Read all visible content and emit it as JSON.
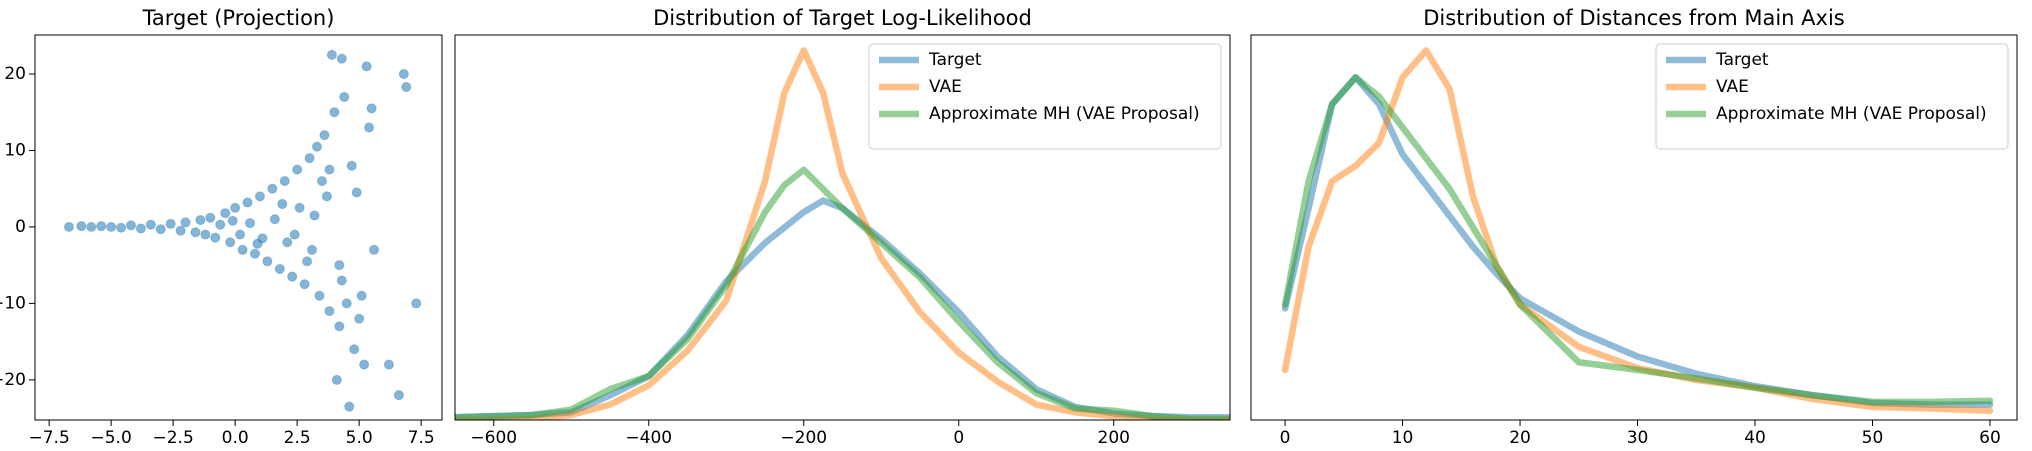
{
  "chart_data": [
    {
      "type": "scatter",
      "title": "Target (Projection)",
      "color": "#1f77b4",
      "x": [
        -6.7,
        -6.2,
        -5.8,
        -5.4,
        -5,
        -4.6,
        -4.2,
        -3.8,
        -3.4,
        -3,
        -2.6,
        -2.2,
        -2,
        -1.6,
        -1.4,
        -1.2,
        -1,
        -0.8,
        -0.6,
        -0.4,
        -0.2,
        0,
        0.2,
        0.3,
        0.5,
        0.6,
        0.8,
        1,
        1.1,
        1.3,
        1.5,
        1.6,
        1.8,
        2,
        2.1,
        2.3,
        2.5,
        2.6,
        2.8,
        3,
        3.1,
        3.3,
        3.4,
        3.6,
        3.7,
        3.8,
        3.9,
        4,
        4.1,
        4.2,
        4.3,
        4.4,
        4.5,
        4.6,
        4.7,
        4.8,
        5,
        5.2,
        5.3,
        5.4,
        5.5,
        5.6,
        6.2,
        6.6,
        6.8,
        6.9,
        7.3,
        4.3,
        3.5,
        2.9,
        1.9,
        0.9,
        -0.1,
        2.4,
        3.2,
        4.9,
        4.2,
        3.8,
        5.1
      ],
      "values": [
        0,
        0.1,
        0,
        0.1,
        0,
        -0.1,
        0.2,
        -0.2,
        0.3,
        -0.3,
        0.4,
        -0.5,
        0.6,
        -0.7,
        0.9,
        -1,
        1.2,
        -1.4,
        0.3,
        1.8,
        -2,
        2.5,
        -1,
        -3,
        3.2,
        0.5,
        -3.5,
        4,
        -1.5,
        -4.5,
        5,
        1,
        -5.5,
        6,
        -2,
        -6.5,
        7.5,
        2.5,
        -7.5,
        9,
        -3,
        10.5,
        -9,
        12,
        4,
        -11,
        22.5,
        15,
        -20,
        -13,
        22,
        17,
        -10,
        -23.5,
        8,
        -16,
        -12,
        -18,
        21,
        13,
        15.5,
        -3,
        -18,
        -22,
        20,
        18.3,
        -10,
        -7,
        6,
        -4.5,
        3,
        -2.2,
        0.8,
        -1,
        1.5,
        4.5,
        -5,
        7.5,
        -9
      ],
      "xlim": [
        -8.07,
        8.34
      ],
      "ylim": [
        -25.25,
        25.1
      ],
      "xticks": [
        {
          "value": -7.5,
          "label": "−7.5"
        },
        {
          "value": -5,
          "label": "−5.0"
        },
        {
          "value": -2.5,
          "label": "−2.5"
        },
        {
          "value": 0,
          "label": "0.0"
        },
        {
          "value": 2.5,
          "label": "2.5"
        },
        {
          "value": 5,
          "label": "5.0"
        },
        {
          "value": 7.5,
          "label": "7.5"
        }
      ],
      "yticks": [
        {
          "value": -20,
          "label": "−20"
        },
        {
          "value": -10,
          "label": "−10"
        },
        0,
        10,
        20
      ]
    },
    {
      "type": "line",
      "title": "Distribution of Target Log-Likelihood",
      "legend": "upper right",
      "x": [
        -650,
        -600,
        -550,
        -500,
        -450,
        -400,
        -350,
        -300,
        -250,
        -225,
        -200,
        -175,
        -150,
        -100,
        -50,
        0,
        50,
        100,
        150,
        200,
        250,
        300,
        350
      ],
      "series": [
        {
          "name": "Target",
          "color": "#1f77b4",
          "values": [
            0.7,
            1,
            1.3,
            2,
            6.4,
            11.4,
            22,
            36,
            46,
            50,
            54,
            57,
            55,
            47,
            38,
            28,
            16.5,
            8,
            3.4,
            1.7,
            1,
            0.7,
            0.7
          ]
        },
        {
          "name": "VAE",
          "color": "#ff7f0e",
          "values": [
            0,
            0.1,
            0.3,
            1.3,
            4,
            9,
            18,
            31,
            62,
            85,
            96,
            85,
            64,
            42,
            28,
            17.5,
            10,
            4,
            2,
            1,
            0.3,
            0,
            0
          ]
        },
        {
          "name": "Approximate MH (VAE Proposal)",
          "color": "#2ca02c",
          "values": [
            0.7,
            1,
            1.3,
            2.7,
            8,
            11.4,
            21,
            35,
            54,
            61,
            65,
            60,
            55,
            46,
            37,
            25.6,
            15,
            7,
            3,
            2.4,
            1,
            0.3,
            0.3
          ]
        }
      ],
      "xlim": [
        -650,
        350
      ],
      "ylim": [
        0,
        100
      ],
      "xticks": [
        {
          "value": -600,
          "label": "−600"
        },
        {
          "value": -400,
          "label": "−400"
        },
        {
          "value": -200,
          "label": "−200"
        },
        0,
        200
      ]
    },
    {
      "type": "line",
      "title": "Distribution of Distances from Main Axis",
      "legend": "upper right",
      "x": [
        0,
        2,
        4,
        6,
        8,
        10,
        12,
        14,
        16,
        18,
        20,
        25,
        30,
        35,
        40,
        45,
        50,
        55,
        60
      ],
      "series": [
        {
          "name": "Target",
          "color": "#1f77b4",
          "values": [
            29,
            55,
            82,
            89,
            82,
            69,
            61,
            53,
            45,
            38,
            31.6,
            23,
            16.5,
            12,
            8.8,
            6.4,
            4.4,
            4,
            4
          ]
        },
        {
          "name": "VAE",
          "color": "#ff7f0e",
          "values": [
            13,
            45,
            62,
            66,
            72,
            89,
            96,
            86,
            58,
            40,
            30,
            19,
            13.5,
            10.4,
            8.4,
            5.4,
            3.4,
            3,
            2.4
          ]
        },
        {
          "name": "Approximate MH (VAE Proposal)",
          "color": "#2ca02c",
          "values": [
            30,
            62,
            82,
            89,
            84,
            76,
            68,
            60,
            50,
            40,
            30,
            15,
            13,
            10.8,
            8.4,
            6.4,
            4.7,
            4.7,
            5
          ]
        }
      ],
      "xlim": [
        -2.9,
        62.3
      ],
      "ylim": [
        0,
        100
      ],
      "xticks": [
        0,
        10,
        20,
        30,
        40,
        50,
        60
      ]
    }
  ]
}
